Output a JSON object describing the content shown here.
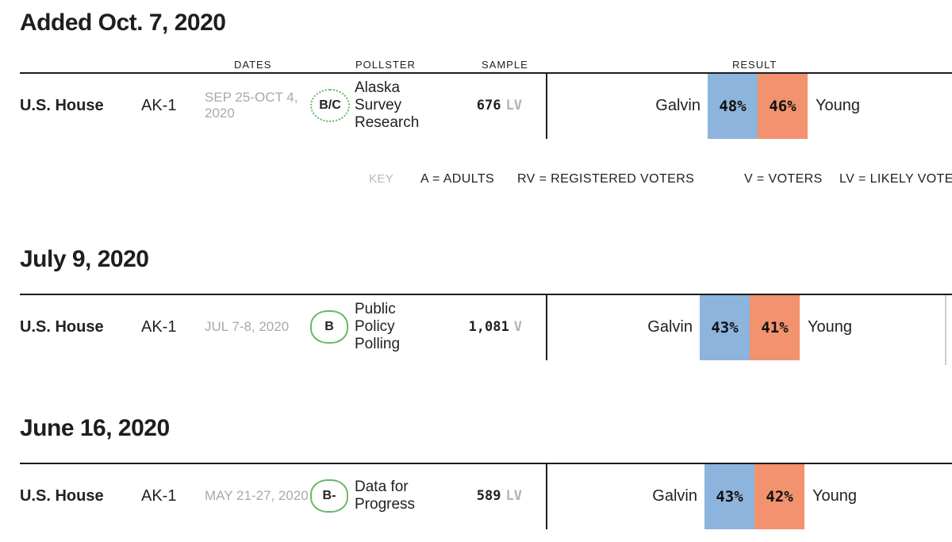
{
  "colors": {
    "dem_blue": "#8db4dc",
    "rep_orange": "#f2926e",
    "grade_green": "#64b964"
  },
  "column_headers": {
    "dates": "DATES",
    "pollster": "POLLSTER",
    "sample": "SAMPLE",
    "result": "RESULT"
  },
  "key": {
    "label": "KEY",
    "items": [
      "A = ADULTS",
      "RV = REGISTERED VOTERS",
      "V = VOTERS",
      "LV = LIKELY VOTERS"
    ]
  },
  "sections": [
    {
      "heading": "Added Oct. 7, 2020",
      "rows": [
        {
          "race": "U.S. House",
          "district": "AK-1",
          "dates_line1": "SEP 25-OCT 4,",
          "dates_line2": "2020",
          "grade": "B/C",
          "pollster": "Alaska Survey Research",
          "sample_value": "676",
          "sample_type": "LV",
          "dem_candidate": "Galvin",
          "dem_result": "48%",
          "rep_result": "46%",
          "rep_candidate": "Young"
        }
      ]
    },
    {
      "heading": "July 9, 2020",
      "rows": [
        {
          "race": "U.S. House",
          "district": "AK-1",
          "dates_line1": "JUL 7-8, 2020",
          "dates_line2": "",
          "grade": "B",
          "pollster": "Public Policy Polling",
          "sample_value": "1,081",
          "sample_type": "V",
          "dem_candidate": "Galvin",
          "dem_result": "43%",
          "rep_result": "41%",
          "rep_candidate": "Young"
        }
      ]
    },
    {
      "heading": "June 16, 2020",
      "rows": [
        {
          "race": "U.S. House",
          "district": "AK-1",
          "dates_line1": "MAY 21-27, 2020",
          "dates_line2": "",
          "grade": "B-",
          "pollster": "Data for Progress",
          "sample_value": "589",
          "sample_type": "LV",
          "dem_candidate": "Galvin",
          "dem_result": "43%",
          "rep_result": "42%",
          "rep_candidate": "Young"
        }
      ]
    }
  ]
}
